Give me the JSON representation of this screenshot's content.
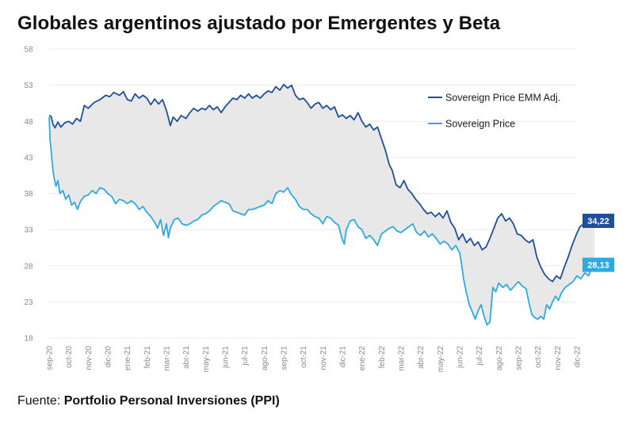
{
  "title": "Globales argentinos ajustado por Emergentes y Beta",
  "footer": {
    "prefix": "Fuente: ",
    "source": "Portfolio Personal Inversiones (PPI)"
  },
  "colors": {
    "adj": "#1f4e9a",
    "raw": "#2fa9e0",
    "fill": "#e6e6e6",
    "grid": "#ececec"
  },
  "chart_data": {
    "type": "line",
    "title": "Globales argentinos ajustado por Emergentes y Beta",
    "xlabel": "",
    "ylabel": "",
    "ylim": [
      18,
      58
    ],
    "yticks": [
      18,
      23,
      28,
      33,
      38,
      43,
      48,
      53,
      58
    ],
    "x": [
      "sep-20",
      "oct-20",
      "nov-20",
      "dic-20",
      "ene-21",
      "feb-21",
      "mar-21",
      "abr-21",
      "may-21",
      "jun-21",
      "jul-21",
      "ago-21",
      "sep-21",
      "oct-21",
      "nov-21",
      "dic-21",
      "ene-22",
      "feb-22",
      "mar-22",
      "abr-22",
      "may-22",
      "jun-22",
      "jul-22",
      "ago-22",
      "sep-22",
      "oct-22",
      "nov-22",
      "dic-22"
    ],
    "legend_position": "top-right",
    "series": [
      {
        "name": "Sovereign Price EMM Adj.",
        "end_label": "34,22",
        "values": [
          [
            0,
            48.8
          ],
          [
            0.1,
            48.7
          ],
          [
            0.2,
            47.6
          ],
          [
            0.3,
            47.1
          ],
          [
            0.45,
            47.9
          ],
          [
            0.6,
            47.2
          ],
          [
            0.8,
            47.8
          ],
          [
            1.0,
            48.0
          ],
          [
            1.2,
            47.6
          ],
          [
            1.4,
            48.4
          ],
          [
            1.6,
            48.0
          ],
          [
            1.8,
            50.2
          ],
          [
            2.0,
            49.8
          ],
          [
            2.3,
            50.6
          ],
          [
            2.6,
            51.0
          ],
          [
            2.9,
            51.6
          ],
          [
            3.1,
            51.4
          ],
          [
            3.3,
            52.0
          ],
          [
            3.6,
            51.6
          ],
          [
            3.8,
            52.1
          ],
          [
            4.0,
            51.0
          ],
          [
            4.2,
            50.8
          ],
          [
            4.4,
            51.8
          ],
          [
            4.6,
            51.2
          ],
          [
            4.8,
            51.6
          ],
          [
            5.0,
            51.2
          ],
          [
            5.2,
            50.3
          ],
          [
            5.4,
            51.1
          ],
          [
            5.6,
            50.4
          ],
          [
            5.8,
            51.0
          ],
          [
            6.0,
            49.5
          ],
          [
            6.1,
            48.5
          ],
          [
            6.2,
            47.4
          ],
          [
            6.35,
            48.6
          ],
          [
            6.55,
            48.0
          ],
          [
            6.75,
            48.8
          ],
          [
            7.0,
            48.4
          ],
          [
            7.2,
            49.2
          ],
          [
            7.4,
            49.8
          ],
          [
            7.6,
            49.4
          ],
          [
            7.8,
            49.8
          ],
          [
            8.0,
            49.6
          ],
          [
            8.2,
            50.2
          ],
          [
            8.4,
            49.6
          ],
          [
            8.6,
            50.0
          ],
          [
            8.8,
            49.2
          ],
          [
            9.0,
            50.0
          ],
          [
            9.2,
            50.6
          ],
          [
            9.4,
            51.2
          ],
          [
            9.6,
            51.0
          ],
          [
            9.8,
            51.6
          ],
          [
            10.0,
            51.2
          ],
          [
            10.2,
            51.8
          ],
          [
            10.4,
            51.2
          ],
          [
            10.6,
            51.6
          ],
          [
            10.8,
            51.2
          ],
          [
            11.0,
            51.8
          ],
          [
            11.2,
            52.2
          ],
          [
            11.4,
            52.0
          ],
          [
            11.6,
            52.8
          ],
          [
            11.8,
            52.3
          ],
          [
            12.0,
            53.1
          ],
          [
            12.2,
            52.6
          ],
          [
            12.4,
            53.0
          ],
          [
            12.6,
            51.6
          ],
          [
            12.8,
            51.0
          ],
          [
            13.0,
            51.2
          ],
          [
            13.2,
            50.6
          ],
          [
            13.4,
            49.8
          ],
          [
            13.6,
            50.4
          ],
          [
            13.8,
            50.6
          ],
          [
            14.0,
            49.8
          ],
          [
            14.2,
            50.2
          ],
          [
            14.4,
            49.6
          ],
          [
            14.6,
            50.0
          ],
          [
            14.8,
            48.6
          ],
          [
            15.0,
            48.9
          ],
          [
            15.2,
            48.4
          ],
          [
            15.4,
            48.8
          ],
          [
            15.6,
            48.2
          ],
          [
            15.8,
            49.2
          ],
          [
            16.0,
            48.0
          ],
          [
            16.2,
            47.2
          ],
          [
            16.4,
            47.6
          ],
          [
            16.6,
            46.8
          ],
          [
            16.8,
            47.2
          ],
          [
            17.0,
            45.6
          ],
          [
            17.2,
            44.0
          ],
          [
            17.4,
            42.0
          ],
          [
            17.55,
            41.2
          ],
          [
            17.75,
            39.2
          ],
          [
            17.95,
            38.8
          ],
          [
            18.15,
            39.8
          ],
          [
            18.35,
            38.6
          ],
          [
            18.55,
            38.0
          ],
          [
            18.75,
            37.2
          ],
          [
            18.95,
            36.6
          ],
          [
            19.15,
            35.8
          ],
          [
            19.35,
            35.2
          ],
          [
            19.55,
            35.4
          ],
          [
            19.75,
            34.8
          ],
          [
            19.95,
            35.3
          ],
          [
            20.15,
            34.6
          ],
          [
            20.35,
            35.6
          ],
          [
            20.55,
            34.0
          ],
          [
            20.75,
            33.2
          ],
          [
            20.95,
            31.6
          ],
          [
            21.15,
            32.4
          ],
          [
            21.35,
            31.2
          ],
          [
            21.55,
            31.8
          ],
          [
            21.75,
            30.8
          ],
          [
            21.95,
            31.3
          ],
          [
            22.15,
            30.2
          ],
          [
            22.35,
            30.6
          ],
          [
            22.55,
            31.8
          ],
          [
            22.75,
            33.2
          ],
          [
            22.95,
            34.6
          ],
          [
            23.15,
            35.2
          ],
          [
            23.35,
            34.2
          ],
          [
            23.55,
            34.6
          ],
          [
            23.75,
            33.8
          ],
          [
            23.95,
            32.4
          ],
          [
            24.15,
            32.2
          ],
          [
            24.35,
            31.6
          ],
          [
            24.55,
            31.2
          ],
          [
            24.75,
            31.6
          ],
          [
            24.95,
            29.2
          ],
          [
            25.15,
            27.8
          ],
          [
            25.35,
            26.8
          ],
          [
            25.55,
            26.2
          ],
          [
            25.75,
            25.8
          ],
          [
            25.95,
            26.6
          ],
          [
            26.15,
            26.2
          ],
          [
            26.35,
            27.8
          ],
          [
            26.55,
            29.2
          ],
          [
            26.75,
            30.8
          ],
          [
            26.95,
            32.2
          ],
          [
            27.15,
            33.4
          ],
          [
            27.35,
            33.8
          ],
          [
            27.55,
            33.4
          ],
          [
            27.75,
            34.2
          ],
          [
            27.9,
            34.22
          ]
        ]
      },
      {
        "name": "Sovereign Price",
        "end_label": "28,13",
        "values": [
          [
            0,
            48.6
          ],
          [
            0.05,
            45.4
          ],
          [
            0.1,
            44.0
          ],
          [
            0.15,
            42.4
          ],
          [
            0.2,
            41.2
          ],
          [
            0.25,
            40.2
          ],
          [
            0.35,
            39.0
          ],
          [
            0.45,
            39.8
          ],
          [
            0.55,
            38.0
          ],
          [
            0.7,
            38.4
          ],
          [
            0.85,
            37.2
          ],
          [
            1.0,
            37.8
          ],
          [
            1.15,
            36.4
          ],
          [
            1.3,
            36.8
          ],
          [
            1.45,
            35.8
          ],
          [
            1.6,
            36.9
          ],
          [
            1.8,
            37.6
          ],
          [
            2.0,
            37.8
          ],
          [
            2.2,
            38.4
          ],
          [
            2.4,
            38.0
          ],
          [
            2.6,
            38.8
          ],
          [
            2.8,
            38.6
          ],
          [
            3.0,
            38.0
          ],
          [
            3.2,
            37.6
          ],
          [
            3.4,
            36.6
          ],
          [
            3.6,
            37.2
          ],
          [
            3.8,
            37.0
          ],
          [
            4.0,
            36.6
          ],
          [
            4.2,
            37.0
          ],
          [
            4.4,
            36.6
          ],
          [
            4.6,
            35.8
          ],
          [
            4.8,
            36.2
          ],
          [
            5.0,
            35.4
          ],
          [
            5.2,
            34.8
          ],
          [
            5.4,
            34.0
          ],
          [
            5.55,
            33.2
          ],
          [
            5.7,
            34.4
          ],
          [
            5.85,
            32.2
          ],
          [
            6.0,
            33.8
          ],
          [
            6.1,
            31.9
          ],
          [
            6.2,
            33.2
          ],
          [
            6.4,
            34.4
          ],
          [
            6.6,
            34.6
          ],
          [
            6.8,
            33.8
          ],
          [
            7.0,
            33.6
          ],
          [
            7.2,
            33.8
          ],
          [
            7.4,
            34.2
          ],
          [
            7.6,
            34.4
          ],
          [
            7.8,
            35.0
          ],
          [
            8.0,
            35.2
          ],
          [
            8.2,
            35.6
          ],
          [
            8.4,
            36.2
          ],
          [
            8.6,
            36.6
          ],
          [
            8.8,
            37.0
          ],
          [
            9.0,
            36.8
          ],
          [
            9.2,
            36.6
          ],
          [
            9.4,
            35.6
          ],
          [
            9.6,
            35.4
          ],
          [
            9.8,
            35.2
          ],
          [
            10.0,
            35.0
          ],
          [
            10.2,
            35.8
          ],
          [
            10.4,
            35.8
          ],
          [
            10.6,
            36.0
          ],
          [
            10.8,
            36.2
          ],
          [
            11.0,
            36.4
          ],
          [
            11.2,
            37.0
          ],
          [
            11.4,
            36.6
          ],
          [
            11.6,
            38.0
          ],
          [
            11.8,
            38.4
          ],
          [
            12.0,
            38.2
          ],
          [
            12.2,
            38.8
          ],
          [
            12.4,
            37.8
          ],
          [
            12.6,
            37.2
          ],
          [
            12.8,
            36.2
          ],
          [
            13.0,
            35.8
          ],
          [
            13.2,
            35.8
          ],
          [
            13.4,
            35.2
          ],
          [
            13.6,
            34.8
          ],
          [
            13.8,
            34.6
          ],
          [
            14.0,
            33.8
          ],
          [
            14.2,
            34.8
          ],
          [
            14.4,
            34.6
          ],
          [
            14.6,
            34.0
          ],
          [
            14.8,
            33.6
          ],
          [
            15.0,
            31.6
          ],
          [
            15.1,
            31.0
          ],
          [
            15.2,
            33.0
          ],
          [
            15.4,
            34.2
          ],
          [
            15.6,
            34.4
          ],
          [
            15.8,
            33.4
          ],
          [
            16.0,
            33.0
          ],
          [
            16.2,
            31.8
          ],
          [
            16.4,
            32.2
          ],
          [
            16.6,
            31.6
          ],
          [
            16.8,
            30.8
          ],
          [
            17.0,
            32.4
          ],
          [
            17.2,
            32.8
          ],
          [
            17.4,
            33.2
          ],
          [
            17.6,
            33.4
          ],
          [
            17.8,
            32.8
          ],
          [
            18.0,
            32.6
          ],
          [
            18.2,
            33.0
          ],
          [
            18.4,
            33.4
          ],
          [
            18.6,
            33.8
          ],
          [
            18.8,
            32.6
          ],
          [
            19.0,
            32.2
          ],
          [
            19.2,
            32.8
          ],
          [
            19.4,
            32.0
          ],
          [
            19.6,
            32.4
          ],
          [
            19.8,
            31.8
          ],
          [
            20.0,
            31.0
          ],
          [
            20.2,
            31.4
          ],
          [
            20.4,
            31.0
          ],
          [
            20.6,
            30.2
          ],
          [
            20.8,
            30.8
          ],
          [
            21.0,
            29.8
          ],
          [
            21.1,
            28.2
          ],
          [
            21.2,
            26.2
          ],
          [
            21.35,
            24.2
          ],
          [
            21.5,
            22.6
          ],
          [
            21.65,
            21.6
          ],
          [
            21.8,
            20.6
          ],
          [
            21.95,
            21.8
          ],
          [
            22.1,
            22.6
          ],
          [
            22.25,
            21.0
          ],
          [
            22.4,
            19.8
          ],
          [
            22.55,
            20.2
          ],
          [
            22.7,
            25.0
          ],
          [
            22.85,
            24.4
          ],
          [
            23.0,
            25.6
          ],
          [
            23.2,
            25.0
          ],
          [
            23.4,
            25.4
          ],
          [
            23.6,
            24.6
          ],
          [
            23.8,
            25.2
          ],
          [
            24.0,
            25.8
          ],
          [
            24.2,
            25.2
          ],
          [
            24.4,
            24.8
          ],
          [
            24.55,
            22.8
          ],
          [
            24.7,
            21.2
          ],
          [
            24.85,
            20.8
          ],
          [
            25.0,
            20.6
          ],
          [
            25.15,
            21.0
          ],
          [
            25.3,
            20.6
          ],
          [
            25.45,
            22.6
          ],
          [
            25.6,
            22.0
          ],
          [
            25.75,
            23.0
          ],
          [
            25.9,
            23.8
          ],
          [
            26.05,
            23.2
          ],
          [
            26.2,
            24.2
          ],
          [
            26.4,
            25.0
          ],
          [
            26.6,
            25.4
          ],
          [
            26.8,
            25.8
          ],
          [
            27.0,
            26.6
          ],
          [
            27.2,
            26.2
          ],
          [
            27.4,
            27.0
          ],
          [
            27.6,
            26.6
          ],
          [
            27.75,
            27.8
          ],
          [
            27.9,
            28.13
          ]
        ]
      }
    ]
  }
}
